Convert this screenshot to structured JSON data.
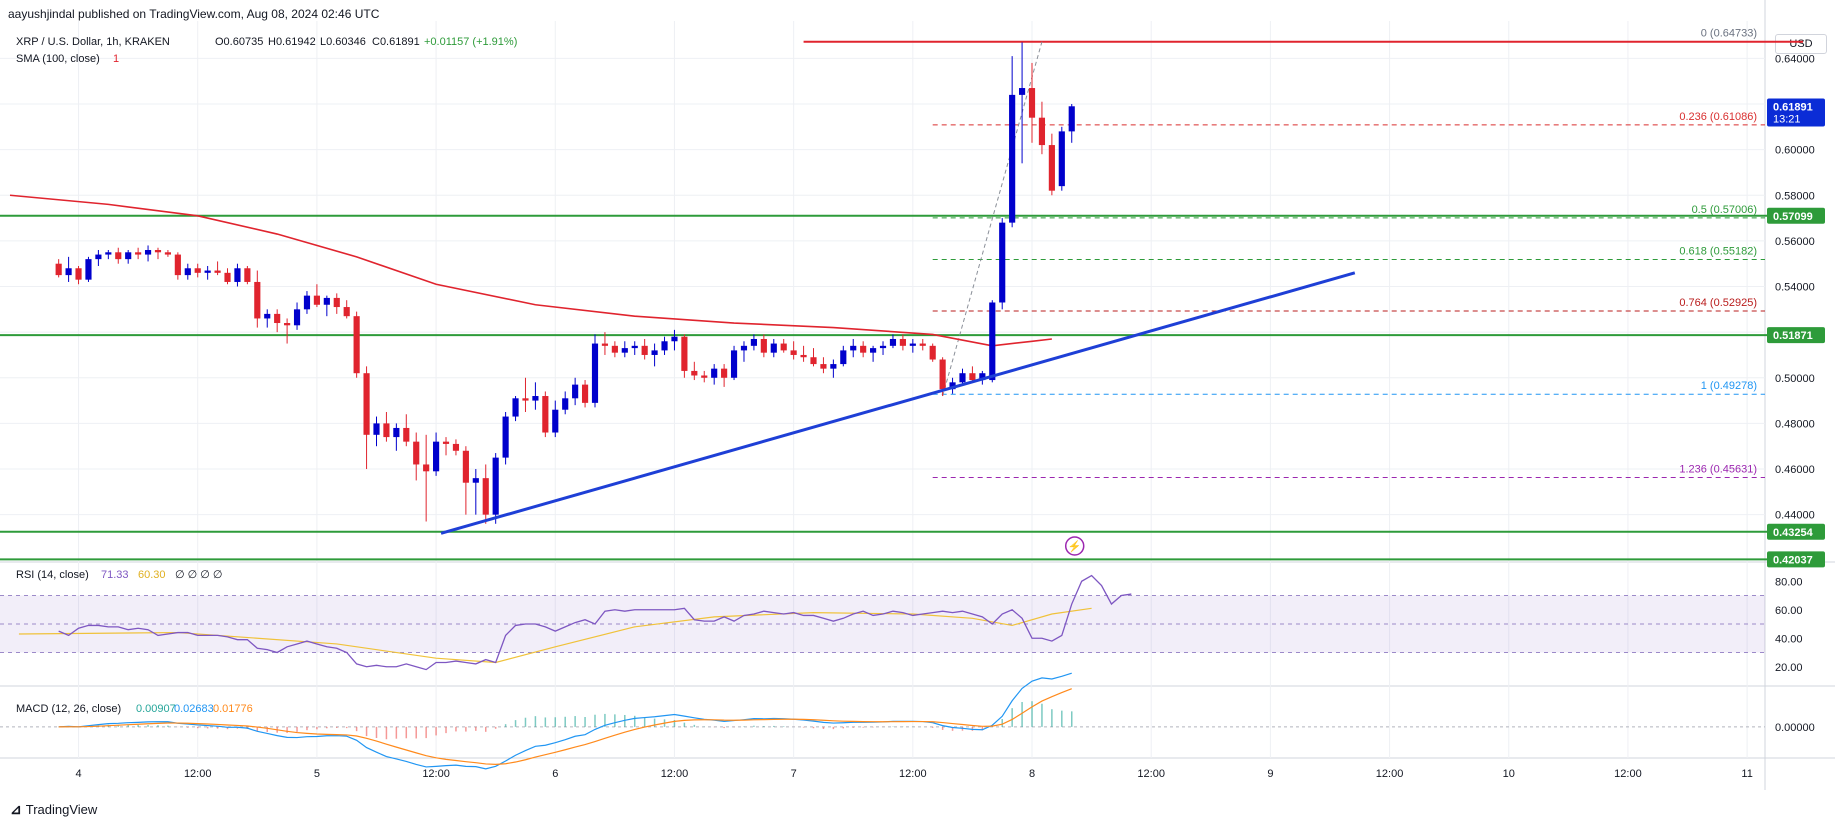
{
  "header": {
    "publisher": "aayushjindal published on TradingView.com, Aug 08, 2024 02:46 UTC",
    "symbol": "XRP / U.S. Dollar, 1h, KRAKEN",
    "ohlc": {
      "o": "O0.60735",
      "h": "H0.61942",
      "l": "L0.60346",
      "c": "C0.61891",
      "chg": "+0.01157 (+1.91%)"
    },
    "sma_label": "SMA (100, close)",
    "sma_value": "1",
    "currency": "USD"
  },
  "footer": {
    "brand": "TradingView"
  },
  "colors": {
    "up": "#0000cc",
    "down": "#e0242e",
    "support": "#2e9b3a",
    "resistance": "#e0242e",
    "trend": "#1e3fd6",
    "sma": "#e0242e",
    "rsi": "#7e57c2",
    "rsi_ma": "#f0c23a",
    "macd": "#2196f3",
    "signal": "#ff8a1c",
    "fib_red": "#d92f2f",
    "fib_green": "#2e9b3a",
    "fib_blue": "#2196f3",
    "fib_purple": "#9c27b0"
  },
  "chart_data": {
    "type": "candlestick",
    "ylim": [
      0.421,
      0.652
    ],
    "y_ticks": [
      "0.64000",
      "0.62000",
      "0.60000",
      "0.58000",
      "0.56000",
      "0.54000",
      "0.52000",
      "0.50000",
      "0.48000",
      "0.46000",
      "0.44000"
    ],
    "x_ticks": [
      {
        "t": 2,
        "label": "4"
      },
      {
        "t": 14,
        "label": "12:00"
      },
      {
        "t": 26,
        "label": "5"
      },
      {
        "t": 38,
        "label": "12:00"
      },
      {
        "t": 50,
        "label": "6"
      },
      {
        "t": 62,
        "label": "12:00"
      },
      {
        "t": 74,
        "label": "7"
      },
      {
        "t": 86,
        "label": "12:00"
      },
      {
        "t": 98,
        "label": "8"
      },
      {
        "t": 110,
        "label": "12:00"
      },
      {
        "t": 122,
        "label": "9"
      },
      {
        "t": 134,
        "label": "12:00"
      },
      {
        "t": 146,
        "label": "10"
      },
      {
        "t": 158,
        "label": "12:00"
      },
      {
        "t": 170,
        "label": "11"
      }
    ],
    "x_range": [
      -4.9,
      171.8
    ],
    "candles": [
      [
        0.55,
        0.552,
        0.544,
        0.545
      ],
      [
        0.545,
        0.553,
        0.542,
        0.548
      ],
      [
        0.548,
        0.549,
        0.541,
        0.543
      ],
      [
        0.543,
        0.553,
        0.542,
        0.552
      ],
      [
        0.552,
        0.556,
        0.549,
        0.554
      ],
      [
        0.554,
        0.556,
        0.552,
        0.555
      ],
      [
        0.555,
        0.557,
        0.55,
        0.552
      ],
      [
        0.552,
        0.556,
        0.55,
        0.555
      ],
      [
        0.555,
        0.557,
        0.552,
        0.554
      ],
      [
        0.554,
        0.558,
        0.551,
        0.556
      ],
      [
        0.556,
        0.557,
        0.552,
        0.555
      ],
      [
        0.555,
        0.556,
        0.553,
        0.554
      ],
      [
        0.554,
        0.555,
        0.543,
        0.545
      ],
      [
        0.545,
        0.55,
        0.543,
        0.548
      ],
      [
        0.548,
        0.55,
        0.544,
        0.546
      ],
      [
        0.546,
        0.549,
        0.543,
        0.547
      ],
      [
        0.547,
        0.551,
        0.545,
        0.546
      ],
      [
        0.546,
        0.548,
        0.541,
        0.542
      ],
      [
        0.542,
        0.55,
        0.54,
        0.548
      ],
      [
        0.548,
        0.549,
        0.541,
        0.542
      ],
      [
        0.542,
        0.547,
        0.522,
        0.526
      ],
      [
        0.526,
        0.53,
        0.522,
        0.528
      ],
      [
        0.528,
        0.53,
        0.52,
        0.524
      ],
      [
        0.524,
        0.526,
        0.515,
        0.523
      ],
      [
        0.523,
        0.533,
        0.521,
        0.53
      ],
      [
        0.53,
        0.538,
        0.528,
        0.536
      ],
      [
        0.536,
        0.541,
        0.531,
        0.532
      ],
      [
        0.532,
        0.536,
        0.527,
        0.535
      ],
      [
        0.535,
        0.537,
        0.528,
        0.531
      ],
      [
        0.531,
        0.534,
        0.526,
        0.527
      ],
      [
        0.527,
        0.529,
        0.5,
        0.502
      ],
      [
        0.502,
        0.505,
        0.46,
        0.475
      ],
      [
        0.475,
        0.483,
        0.47,
        0.48
      ],
      [
        0.48,
        0.485,
        0.472,
        0.474
      ],
      [
        0.474,
        0.48,
        0.468,
        0.478
      ],
      [
        0.478,
        0.484,
        0.47,
        0.472
      ],
      [
        0.472,
        0.476,
        0.455,
        0.462
      ],
      [
        0.462,
        0.475,
        0.437,
        0.459
      ],
      [
        0.459,
        0.476,
        0.457,
        0.472
      ],
      [
        0.472,
        0.474,
        0.466,
        0.471
      ],
      [
        0.471,
        0.473,
        0.466,
        0.468
      ],
      [
        0.468,
        0.47,
        0.44,
        0.454
      ],
      [
        0.454,
        0.46,
        0.44,
        0.456
      ],
      [
        0.456,
        0.462,
        0.436,
        0.44
      ],
      [
        0.44,
        0.467,
        0.436,
        0.465
      ],
      [
        0.465,
        0.485,
        0.462,
        0.483
      ],
      [
        0.483,
        0.492,
        0.481,
        0.491
      ],
      [
        0.491,
        0.5,
        0.485,
        0.49
      ],
      [
        0.49,
        0.498,
        0.486,
        0.492
      ],
      [
        0.492,
        0.494,
        0.474,
        0.476
      ],
      [
        0.476,
        0.49,
        0.474,
        0.486
      ],
      [
        0.486,
        0.494,
        0.484,
        0.491
      ],
      [
        0.491,
        0.5,
        0.488,
        0.497
      ],
      [
        0.497,
        0.499,
        0.487,
        0.489
      ],
      [
        0.489,
        0.519,
        0.487,
        0.515
      ],
      [
        0.515,
        0.52,
        0.51,
        0.514
      ],
      [
        0.514,
        0.516,
        0.509,
        0.511
      ],
      [
        0.511,
        0.516,
        0.509,
        0.513
      ],
      [
        0.513,
        0.516,
        0.51,
        0.514
      ],
      [
        0.514,
        0.517,
        0.508,
        0.51
      ],
      [
        0.51,
        0.515,
        0.505,
        0.512
      ],
      [
        0.512,
        0.518,
        0.51,
        0.516
      ],
      [
        0.516,
        0.521,
        0.512,
        0.518
      ],
      [
        0.518,
        0.519,
        0.5,
        0.503
      ],
      [
        0.503,
        0.507,
        0.499,
        0.501
      ],
      [
        0.501,
        0.503,
        0.498,
        0.5
      ],
      [
        0.5,
        0.506,
        0.497,
        0.504
      ],
      [
        0.504,
        0.506,
        0.496,
        0.5
      ],
      [
        0.5,
        0.514,
        0.499,
        0.512
      ],
      [
        0.512,
        0.516,
        0.507,
        0.514
      ],
      [
        0.514,
        0.519,
        0.512,
        0.517
      ],
      [
        0.517,
        0.519,
        0.509,
        0.511
      ],
      [
        0.511,
        0.517,
        0.509,
        0.515
      ],
      [
        0.515,
        0.517,
        0.511,
        0.512
      ],
      [
        0.512,
        0.516,
        0.508,
        0.51
      ],
      [
        0.51,
        0.514,
        0.507,
        0.509
      ],
      [
        0.509,
        0.513,
        0.505,
        0.506
      ],
      [
        0.506,
        0.509,
        0.502,
        0.504
      ],
      [
        0.504,
        0.508,
        0.5,
        0.506
      ],
      [
        0.506,
        0.514,
        0.505,
        0.512
      ],
      [
        0.512,
        0.517,
        0.509,
        0.514
      ],
      [
        0.514,
        0.516,
        0.509,
        0.511
      ],
      [
        0.511,
        0.514,
        0.507,
        0.513
      ],
      [
        0.513,
        0.516,
        0.51,
        0.514
      ],
      [
        0.514,
        0.519,
        0.513,
        0.517
      ],
      [
        0.517,
        0.519,
        0.512,
        0.514
      ],
      [
        0.514,
        0.517,
        0.511,
        0.515
      ],
      [
        0.515,
        0.517,
        0.512,
        0.514
      ],
      [
        0.514,
        0.515,
        0.507,
        0.508
      ],
      [
        0.508,
        0.509,
        0.492,
        0.495
      ],
      [
        0.495,
        0.5,
        0.493,
        0.498
      ],
      [
        0.498,
        0.504,
        0.497,
        0.502
      ],
      [
        0.502,
        0.505,
        0.498,
        0.499
      ],
      [
        0.499,
        0.503,
        0.497,
        0.502
      ],
      [
        0.499,
        0.534,
        0.498,
        0.533
      ],
      [
        0.533,
        0.57,
        0.53,
        0.568
      ],
      [
        0.568,
        0.641,
        0.566,
        0.624
      ],
      [
        0.624,
        0.647,
        0.594,
        0.627
      ],
      [
        0.627,
        0.638,
        0.603,
        0.614
      ],
      [
        0.614,
        0.621,
        0.598,
        0.602
      ],
      [
        0.602,
        0.607,
        0.58,
        0.582
      ],
      [
        0.584,
        0.61,
        0.582,
        0.608
      ],
      [
        0.608,
        0.62,
        0.603,
        0.619
      ]
    ],
    "sma_points": [
      [
        -4.9,
        0.58
      ],
      [
        5,
        0.576
      ],
      [
        14,
        0.571
      ],
      [
        22,
        0.563
      ],
      [
        30,
        0.553
      ],
      [
        38,
        0.541
      ],
      [
        48,
        0.532
      ],
      [
        58,
        0.527
      ],
      [
        68,
        0.524
      ],
      [
        78,
        0.522
      ],
      [
        88,
        0.519
      ],
      [
        94,
        0.514
      ],
      [
        98,
        0.516
      ],
      [
        100,
        0.517
      ]
    ],
    "horizontal_lines": [
      {
        "name": "resistance",
        "y": 0.6473,
        "color": "#e0242e",
        "from": 75
      },
      {
        "name": "support-057",
        "y": 0.571,
        "color": "#2e9b3a"
      },
      {
        "name": "support-0519",
        "y": 0.5187,
        "color": "#2e9b3a"
      },
      {
        "name": "support-0432",
        "y": 0.4325,
        "color": "#2e9b3a"
      },
      {
        "name": "support-0420",
        "y": 0.4204,
        "color": "#2e9b3a"
      }
    ],
    "trendline": [
      [
        38.5,
        0.4318
      ],
      [
        130.5,
        0.546
      ]
    ],
    "fib_from": 88,
    "fib_levels": [
      {
        "label": "0 (0.64733)",
        "y": 0.6473,
        "color": "#6b7280",
        "line": false
      },
      {
        "label": "0.236 (0.61086)",
        "y": 0.61086,
        "color": "#d92f2f",
        "line": true
      },
      {
        "label": "0.5 (0.57006)",
        "y": 0.57006,
        "color": "#2e9b3a",
        "line": true
      },
      {
        "label": "0.618 (0.55182)",
        "y": 0.55182,
        "color": "#2e9b3a",
        "line": true
      },
      {
        "label": "0.764 (0.52925)",
        "y": 0.52925,
        "color": "#b91c1c",
        "line": true
      },
      {
        "label": "1 (0.49278)",
        "y": 0.49278,
        "color": "#2196f3",
        "line": true
      },
      {
        "label": "1.236 (0.45631)",
        "y": 0.45631,
        "color": "#9c27b0",
        "line": true
      }
    ],
    "price_labels": [
      {
        "text": "0.61891",
        "sub": "13:21",
        "y": 0.61891,
        "bg": "#0b2cd6",
        "fg": "#ffffff"
      },
      {
        "text": "0.57099",
        "y": 0.571,
        "bg": "#2e9b3a",
        "fg": "#ffffff"
      },
      {
        "text": "0.51871",
        "y": 0.5187,
        "bg": "#2e9b3a",
        "fg": "#ffffff"
      },
      {
        "text": "0.43254",
        "y": 0.4325,
        "bg": "#2e9b3a",
        "fg": "#ffffff"
      },
      {
        "text": "0.42037",
        "y": 0.4204,
        "bg": "#2e9b3a",
        "fg": "#ffffff"
      }
    ],
    "rsi": {
      "label": "RSI (14, close)",
      "value": "71.33",
      "ma_value": "60.30",
      "extra": "∅ ∅ ∅ ∅",
      "ylim": [
        10,
        90
      ],
      "ticks": [
        "80.00",
        "60.00",
        "40.00",
        "20.00"
      ],
      "points": [
        45,
        42,
        47,
        49,
        49,
        48,
        48,
        46,
        47,
        46,
        42,
        43,
        44,
        44,
        42,
        42,
        42,
        41,
        39,
        39,
        33,
        32,
        30,
        34,
        36,
        38,
        36,
        34,
        33,
        30,
        22,
        20,
        21,
        20,
        20,
        22,
        20,
        18,
        23,
        23,
        24,
        23,
        22,
        25,
        23,
        42,
        49,
        50,
        50,
        48,
        45,
        48,
        51,
        53,
        50,
        59,
        60,
        59,
        60,
        60,
        60,
        60,
        60,
        61,
        53,
        52,
        52,
        55,
        52,
        56,
        57,
        59,
        58,
        57,
        58,
        56,
        56,
        54,
        52,
        54,
        57,
        59,
        56,
        57,
        59,
        58,
        56,
        57,
        58,
        59,
        58,
        59,
        57,
        55,
        50,
        57,
        60,
        54,
        40,
        40,
        38,
        42,
        64,
        80,
        84,
        77,
        64,
        70,
        71
      ],
      "ma_points": [
        [
          -4,
          43
        ],
        [
          12,
          44
        ],
        [
          28,
          36
        ],
        [
          38,
          26
        ],
        [
          44,
          23
        ],
        [
          50,
          34
        ],
        [
          58,
          48
        ],
        [
          66,
          55
        ],
        [
          76,
          58
        ],
        [
          86,
          57
        ],
        [
          92,
          54
        ],
        [
          96,
          49
        ],
        [
          100,
          57
        ],
        [
          104,
          61
        ]
      ]
    },
    "macd": {
      "label": "MACD (12, 26, close)",
      "hist_value": "0.00907",
      "macd_value": "0.02683",
      "signal_value": "0.01776",
      "ylim": [
        -0.014,
        0.018
      ],
      "ticks": [
        "0.00000"
      ]
    }
  }
}
